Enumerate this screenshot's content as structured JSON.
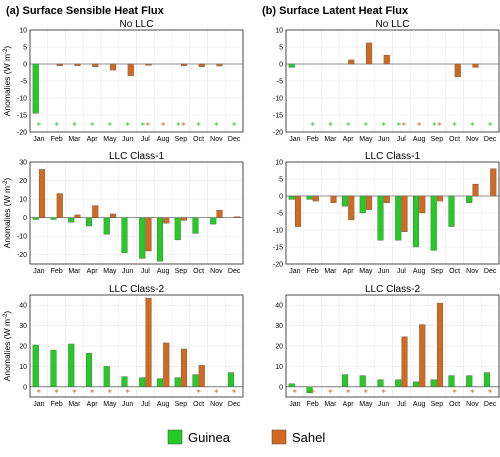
{
  "titles": {
    "left": "(a) Surface Sensible Heat Flux",
    "right": "(b) Surface Latent Heat Flux"
  },
  "ylabel_main": "Anomalies",
  "ylabel_unit": "(W m",
  "ylabel_sup": "-2",
  "ylabel_close": ")",
  "legend": [
    {
      "name": "Guinea",
      "color": "#22cc22"
    },
    {
      "name": "Sahel",
      "color": "#d2691e"
    }
  ],
  "colors": {
    "guinea": "#22cc22",
    "sahel": "#d2691e",
    "grid": "#e6e6e6"
  },
  "star_glyph": "*",
  "chart_data": [
    {
      "type": "bar",
      "id": "a1",
      "col": 0,
      "row": 0,
      "panel_title": "No LLC",
      "categories": [
        "Jan",
        "Feb",
        "Mar",
        "Apr",
        "May",
        "Jun",
        "Jul",
        "Aug",
        "Sep",
        "Oct",
        "Nov",
        "Dec"
      ],
      "ylim": [
        -20,
        10
      ],
      "yticks": [
        -20,
        -15,
        -10,
        -5,
        0,
        5,
        10
      ],
      "series": [
        {
          "name": "Guinea",
          "values": [
            -14.5,
            0,
            0,
            0,
            0,
            0,
            0,
            0,
            0,
            0,
            0,
            0
          ]
        },
        {
          "name": "Sahel",
          "values": [
            0,
            -0.5,
            -0.5,
            -0.8,
            -1.8,
            -3.5,
            -0.4,
            0,
            -0.5,
            -0.8,
            -0.6,
            0
          ]
        }
      ],
      "stars": {
        "y": -18,
        "colors": [
          "g",
          "g",
          "g",
          "g",
          "g",
          "g",
          "go",
          "o",
          "go",
          "g",
          "g",
          "g"
        ]
      }
    },
    {
      "type": "bar",
      "id": "b1",
      "col": 1,
      "row": 0,
      "panel_title": "No LLC",
      "categories": [
        "Jan",
        "Feb",
        "Mar",
        "Apr",
        "May",
        "Jun",
        "Jul",
        "Aug",
        "Sep",
        "Oct",
        "Nov",
        "Dec"
      ],
      "ylim": [
        -20,
        10
      ],
      "yticks": [
        -20,
        -15,
        -10,
        -5,
        0,
        5,
        10
      ],
      "series": [
        {
          "name": "Guinea",
          "values": [
            -1,
            0,
            0,
            0,
            0,
            0,
            0,
            0,
            0,
            0,
            0,
            0
          ]
        },
        {
          "name": "Sahel",
          "values": [
            0,
            0,
            0,
            1.2,
            6.2,
            2.6,
            0,
            0,
            0,
            -3.8,
            -1,
            0
          ]
        }
      ],
      "stars": {
        "y": -18,
        "colors": [
          "",
          "g",
          "g",
          "g",
          "g",
          "g",
          "go",
          "o",
          "go",
          "g",
          "g",
          "g"
        ]
      }
    },
    {
      "type": "bar",
      "id": "a2",
      "col": 0,
      "row": 1,
      "panel_title": "LLC Class-1",
      "categories": [
        "Jan",
        "Feb",
        "Mar",
        "Apr",
        "May",
        "Jun",
        "Jul",
        "Aug",
        "Sep",
        "Oct",
        "Nov",
        "Dec"
      ],
      "ylim": [
        -25,
        30
      ],
      "yticks": [
        -20,
        -10,
        0,
        10,
        20,
        30
      ],
      "series": [
        {
          "name": "Guinea",
          "values": [
            -1,
            -1,
            -2.5,
            -4.5,
            -9,
            -19,
            -22,
            -23.5,
            -12,
            -8.5,
            -3.5,
            0
          ]
        },
        {
          "name": "Sahel",
          "values": [
            26,
            13,
            1.5,
            6.5,
            2,
            0,
            -18,
            -3,
            -1.5,
            0,
            4,
            0.5
          ]
        }
      ],
      "stars": null
    },
    {
      "type": "bar",
      "id": "b2",
      "col": 1,
      "row": 1,
      "panel_title": "LLC Class-1",
      "categories": [
        "Jan",
        "Feb",
        "Mar",
        "Apr",
        "May",
        "Jun",
        "Jul",
        "Aug",
        "Sep",
        "Oct",
        "Nov",
        "Dec"
      ],
      "ylim": [
        -20,
        10
      ],
      "yticks": [
        -20,
        -15,
        -10,
        -5,
        0,
        5,
        10
      ],
      "series": [
        {
          "name": "Guinea",
          "values": [
            -1,
            -1,
            0,
            -3,
            -5,
            -13,
            -13,
            -15,
            -16,
            -9,
            -2,
            0
          ]
        },
        {
          "name": "Sahel",
          "values": [
            -9,
            -1.5,
            -2,
            -7,
            -4,
            -2,
            -10.5,
            -5,
            -1.5,
            0,
            3.5,
            8
          ]
        }
      ],
      "stars": null
    },
    {
      "type": "bar",
      "id": "a3",
      "col": 0,
      "row": 2,
      "panel_title": "LLC Class-2",
      "categories": [
        "Jan",
        "Feb",
        "Mar",
        "Apr",
        "May",
        "Jun",
        "Jul",
        "Aug",
        "Sep",
        "Oct",
        "Nov",
        "Dec"
      ],
      "ylim": [
        -5,
        45
      ],
      "yticks": [
        0,
        10,
        20,
        30,
        40
      ],
      "series": [
        {
          "name": "Guinea",
          "values": [
            20.5,
            18,
            21,
            16.5,
            10,
            5,
            4.5,
            4,
            4.5,
            6,
            0,
            7
          ]
        },
        {
          "name": "Sahel",
          "values": [
            0,
            0,
            0,
            0,
            0,
            0,
            43.5,
            21.5,
            18.5,
            10.5,
            0,
            0
          ]
        }
      ],
      "stars": {
        "y": -2.5,
        "colors": [
          "o",
          "o",
          "o",
          "o",
          "o",
          "o",
          "",
          "",
          "",
          "o",
          "o",
          "o"
        ]
      }
    },
    {
      "type": "bar",
      "id": "b3",
      "col": 1,
      "row": 2,
      "panel_title": "LLC Class-2",
      "categories": [
        "Jan",
        "Feb",
        "Mar",
        "Apr",
        "May",
        "Jun",
        "Jul",
        "Aug",
        "Sep",
        "Oct",
        "Nov",
        "Dec"
      ],
      "ylim": [
        -5,
        45
      ],
      "yticks": [
        0,
        10,
        20,
        30,
        40
      ],
      "series": [
        {
          "name": "Guinea",
          "values": [
            1.5,
            -3,
            0,
            6,
            5.5,
            3.5,
            3.5,
            2.5,
            3.5,
            5.5,
            5.5,
            7
          ]
        },
        {
          "name": "Sahel",
          "values": [
            0,
            0,
            0,
            0,
            0,
            0,
            24.5,
            30.5,
            41,
            0,
            0,
            0
          ]
        }
      ],
      "stars": {
        "y": -2.5,
        "colors": [
          "o",
          "o",
          "o",
          "o",
          "o",
          "o",
          "",
          "",
          "",
          "o",
          "o",
          "o"
        ]
      }
    }
  ]
}
